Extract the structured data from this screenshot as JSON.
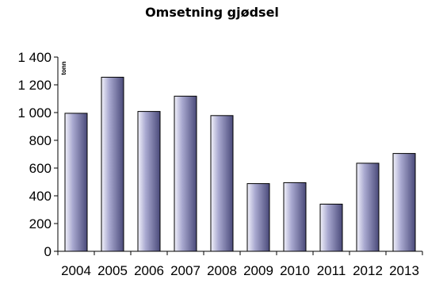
{
  "chart_data": {
    "type": "bar",
    "title": "Omsetning gjødsel",
    "ylabel": "tonn",
    "xlabel": "",
    "categories": [
      "2004",
      "2005",
      "2006",
      "2007",
      "2008",
      "2009",
      "2010",
      "2011",
      "2012",
      "2013"
    ],
    "values": [
      995,
      1255,
      1008,
      1118,
      978,
      488,
      495,
      340,
      635,
      705
    ],
    "ylim": [
      0,
      1400
    ],
    "yticks": [
      0,
      200,
      400,
      600,
      800,
      1000,
      1200,
      1400
    ],
    "ytick_labels": [
      "0",
      "200",
      "400",
      "600",
      "800",
      "1 000",
      "1 200",
      "1 400"
    ],
    "grid": false,
    "legend": "none",
    "colors": {
      "bar_light": "#f2f2fb",
      "bar_mid": "#a9a9d0",
      "bar_dark": "#4a4a7a",
      "outline": "#000000"
    }
  }
}
